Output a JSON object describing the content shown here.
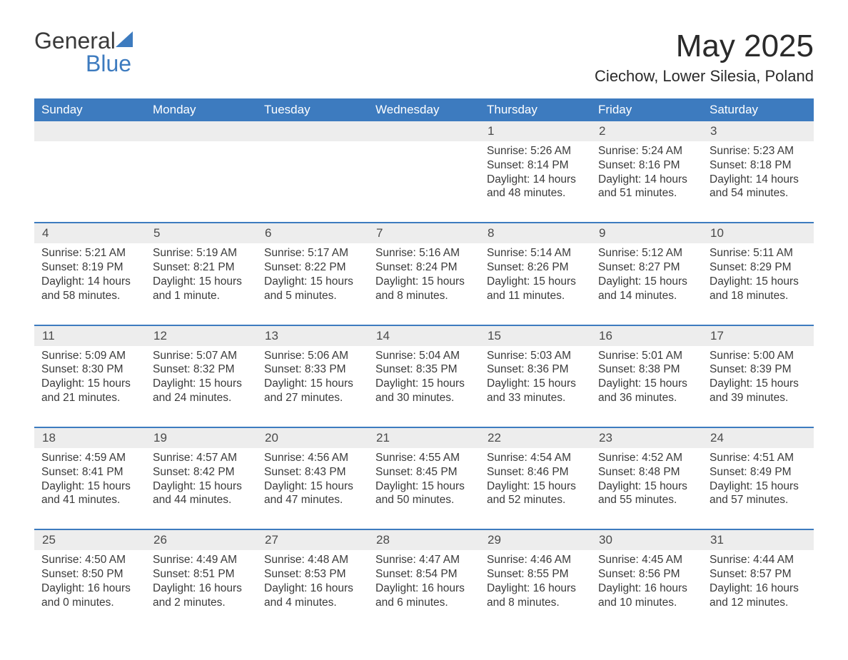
{
  "brand": {
    "word1": "General",
    "word2": "Blue"
  },
  "title": "May 2025",
  "location": "Ciechow, Lower Silesia, Poland",
  "colors": {
    "header_bg": "#3d7bbf",
    "header_text": "#ffffff",
    "daynum_bg": "#ededed",
    "rule": "#3d7bbf",
    "text": "#3a3a3a",
    "background": "#ffffff"
  },
  "fonts": {
    "title_size_pt": 33,
    "location_size_pt": 17,
    "weekday_size_pt": 13,
    "body_size_pt": 12
  },
  "weekdays": [
    "Sunday",
    "Monday",
    "Tuesday",
    "Wednesday",
    "Thursday",
    "Friday",
    "Saturday"
  ],
  "weeks": [
    [
      null,
      null,
      null,
      null,
      {
        "day": "1",
        "sunrise": "5:26 AM",
        "sunset": "8:14 PM",
        "daylight": "14 hours and 48 minutes."
      },
      {
        "day": "2",
        "sunrise": "5:24 AM",
        "sunset": "8:16 PM",
        "daylight": "14 hours and 51 minutes."
      },
      {
        "day": "3",
        "sunrise": "5:23 AM",
        "sunset": "8:18 PM",
        "daylight": "14 hours and 54 minutes."
      }
    ],
    [
      {
        "day": "4",
        "sunrise": "5:21 AM",
        "sunset": "8:19 PM",
        "daylight": "14 hours and 58 minutes."
      },
      {
        "day": "5",
        "sunrise": "5:19 AM",
        "sunset": "8:21 PM",
        "daylight": "15 hours and 1 minute."
      },
      {
        "day": "6",
        "sunrise": "5:17 AM",
        "sunset": "8:22 PM",
        "daylight": "15 hours and 5 minutes."
      },
      {
        "day": "7",
        "sunrise": "5:16 AM",
        "sunset": "8:24 PM",
        "daylight": "15 hours and 8 minutes."
      },
      {
        "day": "8",
        "sunrise": "5:14 AM",
        "sunset": "8:26 PM",
        "daylight": "15 hours and 11 minutes."
      },
      {
        "day": "9",
        "sunrise": "5:12 AM",
        "sunset": "8:27 PM",
        "daylight": "15 hours and 14 minutes."
      },
      {
        "day": "10",
        "sunrise": "5:11 AM",
        "sunset": "8:29 PM",
        "daylight": "15 hours and 18 minutes."
      }
    ],
    [
      {
        "day": "11",
        "sunrise": "5:09 AM",
        "sunset": "8:30 PM",
        "daylight": "15 hours and 21 minutes."
      },
      {
        "day": "12",
        "sunrise": "5:07 AM",
        "sunset": "8:32 PM",
        "daylight": "15 hours and 24 minutes."
      },
      {
        "day": "13",
        "sunrise": "5:06 AM",
        "sunset": "8:33 PM",
        "daylight": "15 hours and 27 minutes."
      },
      {
        "day": "14",
        "sunrise": "5:04 AM",
        "sunset": "8:35 PM",
        "daylight": "15 hours and 30 minutes."
      },
      {
        "day": "15",
        "sunrise": "5:03 AM",
        "sunset": "8:36 PM",
        "daylight": "15 hours and 33 minutes."
      },
      {
        "day": "16",
        "sunrise": "5:01 AM",
        "sunset": "8:38 PM",
        "daylight": "15 hours and 36 minutes."
      },
      {
        "day": "17",
        "sunrise": "5:00 AM",
        "sunset": "8:39 PM",
        "daylight": "15 hours and 39 minutes."
      }
    ],
    [
      {
        "day": "18",
        "sunrise": "4:59 AM",
        "sunset": "8:41 PM",
        "daylight": "15 hours and 41 minutes."
      },
      {
        "day": "19",
        "sunrise": "4:57 AM",
        "sunset": "8:42 PM",
        "daylight": "15 hours and 44 minutes."
      },
      {
        "day": "20",
        "sunrise": "4:56 AM",
        "sunset": "8:43 PM",
        "daylight": "15 hours and 47 minutes."
      },
      {
        "day": "21",
        "sunrise": "4:55 AM",
        "sunset": "8:45 PM",
        "daylight": "15 hours and 50 minutes."
      },
      {
        "day": "22",
        "sunrise": "4:54 AM",
        "sunset": "8:46 PM",
        "daylight": "15 hours and 52 minutes."
      },
      {
        "day": "23",
        "sunrise": "4:52 AM",
        "sunset": "8:48 PM",
        "daylight": "15 hours and 55 minutes."
      },
      {
        "day": "24",
        "sunrise": "4:51 AM",
        "sunset": "8:49 PM",
        "daylight": "15 hours and 57 minutes."
      }
    ],
    [
      {
        "day": "25",
        "sunrise": "4:50 AM",
        "sunset": "8:50 PM",
        "daylight": "16 hours and 0 minutes."
      },
      {
        "day": "26",
        "sunrise": "4:49 AM",
        "sunset": "8:51 PM",
        "daylight": "16 hours and 2 minutes."
      },
      {
        "day": "27",
        "sunrise": "4:48 AM",
        "sunset": "8:53 PM",
        "daylight": "16 hours and 4 minutes."
      },
      {
        "day": "28",
        "sunrise": "4:47 AM",
        "sunset": "8:54 PM",
        "daylight": "16 hours and 6 minutes."
      },
      {
        "day": "29",
        "sunrise": "4:46 AM",
        "sunset": "8:55 PM",
        "daylight": "16 hours and 8 minutes."
      },
      {
        "day": "30",
        "sunrise": "4:45 AM",
        "sunset": "8:56 PM",
        "daylight": "16 hours and 10 minutes."
      },
      {
        "day": "31",
        "sunrise": "4:44 AM",
        "sunset": "8:57 PM",
        "daylight": "16 hours and 12 minutes."
      }
    ]
  ],
  "labels": {
    "sunrise": "Sunrise: ",
    "sunset": "Sunset: ",
    "daylight": "Daylight: "
  }
}
